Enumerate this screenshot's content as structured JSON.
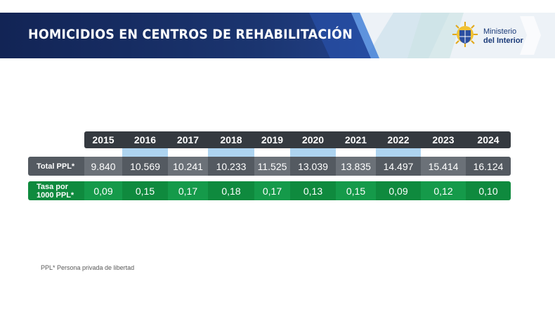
{
  "header": {
    "title": "HOMICIDIOS EN CENTROS DE REHABILITACIÓN",
    "logo_line1": "Ministerio",
    "logo_line2": "del Interior",
    "colors": {
      "banner_dark": "#14275c",
      "banner_light": "#e8eef5",
      "accent": "#1f4aa0"
    }
  },
  "table": {
    "years": [
      "2015",
      "2016",
      "2017",
      "2018",
      "2019",
      "2020",
      "2021",
      "2022",
      "2023",
      "2024"
    ],
    "rows": [
      {
        "label": "Total PPL*",
        "values": [
          "9.840",
          "10.569",
          "10.241",
          "10.233",
          "11.525",
          "13.039",
          "13.835",
          "14.497",
          "15.414",
          "16.124"
        ]
      },
      {
        "label_line1": "Tasa por",
        "label_line2": "1000 PPL*",
        "values": [
          "0,09",
          "0,15",
          "0,17",
          "0,18",
          "0,17",
          "0,13",
          "0,15",
          "0,09",
          "0,12",
          "0,10"
        ]
      }
    ],
    "colors": {
      "year_dark": "#353a40",
      "highlight": "#aed4f0",
      "gray_dark": "#545a61",
      "gray_mid": "#6b7178",
      "green_dark": "#0f8a3e",
      "green_mid": "#159a4a"
    }
  },
  "footnote": "PPL* Persona privada de libertad"
}
